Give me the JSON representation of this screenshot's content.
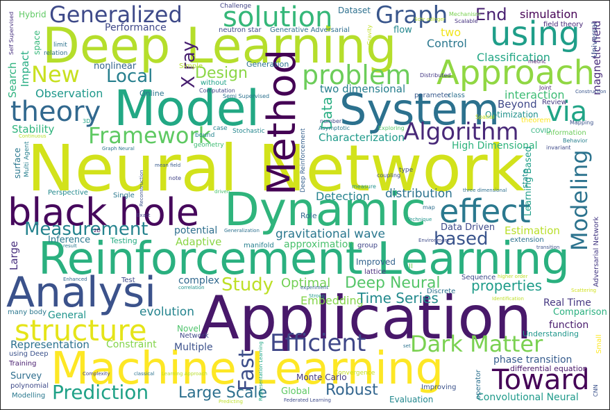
{
  "words": [
    {
      "text": "Neural Network",
      "color": "#d2e21b"
    },
    {
      "text": "Deep Learning",
      "color": "#b5de2b"
    },
    {
      "text": "Application",
      "color": "#48186a"
    },
    {
      "text": "Reinforcement Learning",
      "color": "#2ab07f"
    },
    {
      "text": "Machine Learning",
      "color": "#fde725"
    },
    {
      "text": "Model",
      "color": "#22a884"
    },
    {
      "text": "System",
      "color": "#2c718e"
    },
    {
      "text": "Dynamic",
      "color": "#2fb47c"
    },
    {
      "text": "black hole",
      "color": "#46085c"
    },
    {
      "text": "Approach",
      "color": "#90d743"
    },
    {
      "text": "Analysi",
      "color": "#3b528b"
    },
    {
      "text": "using",
      "color": "#1f9e89"
    },
    {
      "text": "effect",
      "color": "#2a788e"
    },
    {
      "text": "Method",
      "color": "#440154"
    },
    {
      "text": "structure",
      "color": "#e5e419"
    },
    {
      "text": "solution",
      "color": "#35b779"
    },
    {
      "text": "problem",
      "color": "#6ccd5a"
    },
    {
      "text": "theory",
      "color": "#31688e"
    },
    {
      "text": "Generalized",
      "color": "#3e4a89"
    },
    {
      "text": "Graph",
      "color": "#39568c"
    },
    {
      "text": "Framework",
      "color": "#5ec962"
    },
    {
      "text": "Algorithm",
      "color": "#482878"
    },
    {
      "text": "via",
      "color": "#20a486"
    },
    {
      "text": "Toward",
      "color": "#450457"
    },
    {
      "text": "Dark Matter",
      "color": "#7ad151"
    },
    {
      "text": "Efficient",
      "color": "#3f4788"
    },
    {
      "text": "Modeling",
      "color": "#2c738e"
    },
    {
      "text": "Fast",
      "color": "#3d4e8a"
    },
    {
      "text": "Measurement",
      "color": "#25838e"
    },
    {
      "text": "Prediction",
      "color": "#1fa187"
    },
    {
      "text": "New",
      "color": "#c8e020"
    },
    {
      "text": "Local",
      "color": "#277f8e"
    },
    {
      "text": "End",
      "color": "#482071"
    },
    {
      "text": "X ray",
      "color": "#481f70"
    },
    {
      "text": "Study",
      "color": "#bddf26"
    },
    {
      "text": "Deep Neural",
      "color": "#54c568"
    },
    {
      "text": "Large Scale",
      "color": "#2d708e"
    },
    {
      "text": "Robust",
      "color": "#32658e"
    },
    {
      "text": "based",
      "color": "#3a548c"
    },
    {
      "text": "Design",
      "color": "#8bd646"
    },
    {
      "text": "Data",
      "color": "#26ad81"
    },
    {
      "text": "properties",
      "color": "#1e9c89"
    },
    {
      "text": "Embedding",
      "color": "#84d44b"
    },
    {
      "text": "Optimal",
      "color": "#73d056"
    },
    {
      "text": "Time Series",
      "color": "#238a8d"
    },
    {
      "text": "simulation",
      "color": "#440154"
    },
    {
      "text": "magnetic field",
      "color": "#472a7a"
    },
    {
      "text": "Classification",
      "color": "#22a785"
    },
    {
      "text": "Control",
      "color": "#2a778e"
    },
    {
      "text": "flow",
      "color": "#24878e"
    },
    {
      "text": "two",
      "color": "#f1e51d"
    },
    {
      "text": "Performance",
      "color": "#3f4889"
    },
    {
      "text": "two dimensional",
      "color": "#277e8e"
    },
    {
      "text": "interaction",
      "color": "#3dbc74"
    },
    {
      "text": "Beyond",
      "color": "#3f4889"
    },
    {
      "text": "Review",
      "color": "#443a83"
    },
    {
      "text": "Optimization",
      "color": "#21918c"
    },
    {
      "text": "Observation",
      "color": "#1f988b"
    },
    {
      "text": "Stability",
      "color": "#2fb47c"
    },
    {
      "text": "Search",
      "color": "#2db27d"
    },
    {
      "text": "Impact",
      "color": "#25ac82"
    },
    {
      "text": "nonlinear",
      "color": "#33638d"
    },
    {
      "text": "Characterization",
      "color": "#1f9a8a"
    },
    {
      "text": "High Dimensional",
      "color": "#2eb37c"
    },
    {
      "text": "distribution",
      "color": "#2c728e"
    },
    {
      "text": "Detection",
      "color": "#26828e"
    },
    {
      "text": "gravitational wave",
      "color": "#2a778e"
    },
    {
      "text": "approximation",
      "color": "#4ac16d"
    },
    {
      "text": "Adaptive",
      "color": "#8bd646"
    },
    {
      "text": "Estimation",
      "color": "#b8de29"
    },
    {
      "text": "Data Driven",
      "color": "#3e4989"
    },
    {
      "text": "potential",
      "color": "#2e6f8e"
    },
    {
      "text": "Large",
      "color": "#472f7d"
    },
    {
      "text": "Inference",
      "color": "#2a788e"
    },
    {
      "text": "Testing",
      "color": "#25ab82"
    },
    {
      "text": "Real Time",
      "color": "#453781"
    },
    {
      "text": "function",
      "color": "#481b6d"
    },
    {
      "text": "Comparison",
      "color": "#2ab07f"
    },
    {
      "text": "General",
      "color": "#1f948c"
    },
    {
      "text": "evolution",
      "color": "#25848e"
    },
    {
      "text": "complex",
      "color": "#31688e"
    },
    {
      "text": "Representation",
      "color": "#2c718e"
    },
    {
      "text": "Constraint",
      "color": "#84d44b"
    },
    {
      "text": "Multiple",
      "color": "#3b518b"
    },
    {
      "text": "Survey",
      "color": "#2e6e8e"
    },
    {
      "text": "Evaluation",
      "color": "#23888e"
    },
    {
      "text": "Global",
      "color": "#5ec962"
    },
    {
      "text": "Convolutional Neural",
      "color": "#1f9a8a"
    },
    {
      "text": "phase transition",
      "color": "#365c8d"
    },
    {
      "text": "differential equation",
      "color": "#481769"
    },
    {
      "text": "Monte Carlo",
      "color": "#443983"
    },
    {
      "text": "Improved",
      "color": "#33628d"
    },
    {
      "text": "Novel",
      "color": "#4ec36b"
    },
    {
      "text": "Understanding",
      "color": "#1f968b"
    },
    {
      "text": "Online",
      "color": "#2a768e"
    },
    {
      "text": "Simple",
      "color": "#b5de2b"
    },
    {
      "text": "without",
      "color": "#1fa188"
    },
    {
      "text": "Generation",
      "color": "#2c728e"
    },
    {
      "text": "Dataset",
      "color": "#2d708e"
    },
    {
      "text": "Hybrid",
      "color": "#5ec962"
    },
    {
      "text": "Challenge",
      "color": "#414487"
    },
    {
      "text": "neutron star",
      "color": "#3e4a89"
    },
    {
      "text": "Generative Adversarial",
      "color": "#2e6e8e"
    },
    {
      "text": "Mechanism",
      "color": "#7ad151"
    },
    {
      "text": "Scalable",
      "color": "#46337f"
    },
    {
      "text": "field theory",
      "color": "#482878"
    },
    {
      "text": "Universal",
      "color": "#3b528b"
    },
    {
      "text": "space",
      "color": "#35b779"
    },
    {
      "text": "limit",
      "color": "#2c728e"
    },
    {
      "text": "relation",
      "color": "#2e6f8e"
    },
    {
      "text": "Self Supervised",
      "color": "#46307e"
    },
    {
      "text": "Gravity",
      "color": "#c0df25"
    },
    {
      "text": "Schr odinger",
      "color": "#b8de29"
    },
    {
      "text": "metric",
      "color": "#481467"
    },
    {
      "text": "Joint",
      "color": "#482475"
    },
    {
      "text": "Construction",
      "color": "#39568c"
    },
    {
      "text": "Mapping",
      "color": "#3b528b"
    },
    {
      "text": "parameter",
      "color": "#38598c"
    },
    {
      "text": "class",
      "color": "#2d708e"
    },
    {
      "text": "Distributed",
      "color": "#443983"
    },
    {
      "text": "Deep Reinforcement",
      "color": "#35608d"
    },
    {
      "text": "number",
      "color": "#3f4889"
    },
    {
      "text": "Asymptotic",
      "color": "#2a788e"
    },
    {
      "text": "Exploring",
      "color": "#54c568"
    },
    {
      "text": "Spatial",
      "color": "#c8e020"
    },
    {
      "text": "theorem",
      "color": "#fde725"
    },
    {
      "text": "information",
      "color": "#6ccd5a"
    },
    {
      "text": "Behavior",
      "color": "#277f8e"
    },
    {
      "text": "invariant",
      "color": "#3e4a89"
    },
    {
      "text": "COVID",
      "color": "#2db27d"
    },
    {
      "text": "Learning Based",
      "color": "#1f9e89"
    },
    {
      "text": "state",
      "color": "#21918c"
    },
    {
      "text": "Computation",
      "color": "#3f4788"
    },
    {
      "text": "Semi Supervised",
      "color": "#2c718e"
    },
    {
      "text": "Stochastic",
      "color": "#24868e"
    },
    {
      "text": "case",
      "color": "#26828e"
    },
    {
      "text": "bound",
      "color": "#25858e"
    },
    {
      "text": "geometry",
      "color": "#3fbc73"
    },
    {
      "text": "3D",
      "color": "#20a386"
    },
    {
      "text": "Continuous",
      "color": "#b5de2b"
    },
    {
      "text": "Graph Neural",
      "color": "#2c728e"
    },
    {
      "text": "surface",
      "color": "#2a778e"
    },
    {
      "text": "Multi Agent",
      "color": "#277f8e"
    },
    {
      "text": "mean field",
      "color": "#38598c"
    },
    {
      "text": "Reconstruction",
      "color": "#3b528b"
    },
    {
      "text": "note",
      "color": "#414487"
    },
    {
      "text": "Perspective",
      "color": "#238a8d"
    },
    {
      "text": "Single",
      "color": "#2a788e"
    },
    {
      "text": "driven",
      "color": "#48c16e"
    },
    {
      "text": "coupling",
      "color": "#3e4a89"
    },
    {
      "text": "measure",
      "color": "#21918c"
    },
    {
      "text": "type",
      "color": "#3d4d8a"
    },
    {
      "text": "three dimensional",
      "color": "#2d708e"
    },
    {
      "text": "Role",
      "color": "#31688e"
    },
    {
      "text": "map",
      "color": "#2e6e8e"
    },
    {
      "text": "Technique",
      "color": "#1f948c"
    },
    {
      "text": "Exact",
      "color": "#424186"
    },
    {
      "text": "2D",
      "color": "#440154"
    },
    {
      "text": "Generalization",
      "color": "#2d708e"
    },
    {
      "text": "manifold",
      "color": "#277f8e"
    },
    {
      "text": "group",
      "color": "#404688"
    },
    {
      "text": "Environment",
      "color": "#3e4a89"
    },
    {
      "text": "extension",
      "color": "#2c718e"
    },
    {
      "text": "transition",
      "color": "#3b528b"
    },
    {
      "text": "Adversarial Network",
      "color": "#443983"
    },
    {
      "text": "result",
      "color": "#2a788e"
    },
    {
      "text": "Enhanced",
      "color": "#31688e"
    },
    {
      "text": "Test",
      "color": "#3e4a89"
    },
    {
      "text": "correlation",
      "color": "#21918c"
    },
    {
      "text": "lattice",
      "color": "#472d7b"
    },
    {
      "text": "II",
      "color": "#73d056"
    },
    {
      "text": "Sequence",
      "color": "#3e4989"
    },
    {
      "text": "higher order",
      "color": "#bddf26"
    },
    {
      "text": "Scattering",
      "color": "#d0e11c"
    },
    {
      "text": "experiment",
      "color": "#33638d"
    },
    {
      "text": "Strong",
      "color": "#1f9a8a"
    },
    {
      "text": "Discrete",
      "color": "#2c728e"
    },
    {
      "text": "Identification",
      "color": "#bddf26"
    },
    {
      "text": "many body",
      "color": "#2a778e"
    },
    {
      "text": "Small",
      "color": "#fde725"
    },
    {
      "text": "Network",
      "color": "#3f4889"
    },
    {
      "text": "set",
      "color": "#2c728e"
    },
    {
      "text": "using Deep",
      "color": "#3b528b"
    },
    {
      "text": "Training",
      "color": "#481d6f"
    },
    {
      "text": "polynomial",
      "color": "#3e4a89"
    },
    {
      "text": "Modelling",
      "color": "#2a788e"
    },
    {
      "text": "Complexity",
      "color": "#414487"
    },
    {
      "text": "classical",
      "color": "#2c728e"
    },
    {
      "text": "Learning Approach",
      "color": "#b8de29"
    },
    {
      "text": "Representation Learning",
      "color": "#22a785"
    },
    {
      "text": "Convergence",
      "color": "#c8e020"
    },
    {
      "text": "Predicting",
      "color": "#bddf26"
    },
    {
      "text": "Federated Learning",
      "color": "#3e4a89"
    },
    {
      "text": "Improving",
      "color": "#3b528b"
    },
    {
      "text": "operator",
      "color": "#2d708e"
    },
    {
      "text": "CNN",
      "color": "#3b528b"
    }
  ]
}
